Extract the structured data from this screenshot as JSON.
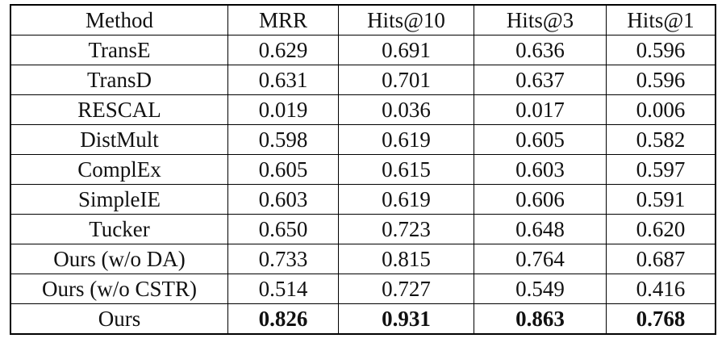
{
  "table": {
    "header": [
      "Method",
      "MRR",
      "Hits@10",
      "Hits@3",
      "Hits@1"
    ],
    "rows": [
      [
        "TransE",
        "0.629",
        "0.691",
        "0.636",
        "0.596"
      ],
      [
        "TransD",
        "0.631",
        "0.701",
        "0.637",
        "0.596"
      ],
      [
        "RESCAL",
        "0.019",
        "0.036",
        "0.017",
        "0.006"
      ],
      [
        "DistMult",
        "0.598",
        "0.619",
        "0.605",
        "0.582"
      ],
      [
        "ComplEx",
        "0.605",
        "0.615",
        "0.603",
        "0.597"
      ],
      [
        "SimpleIE",
        "0.603",
        "0.619",
        "0.606",
        "0.591"
      ],
      [
        "Tucker",
        "0.650",
        "0.723",
        "0.648",
        "0.620"
      ],
      [
        "Ours (w/o DA)",
        "0.733",
        "0.815",
        "0.764",
        "0.687"
      ],
      [
        "Ours (w/o CSTR)",
        "0.514",
        "0.727",
        "0.549",
        "0.416"
      ],
      [
        "Ours",
        "0.826",
        "0.931",
        "0.863",
        "0.768"
      ]
    ]
  }
}
